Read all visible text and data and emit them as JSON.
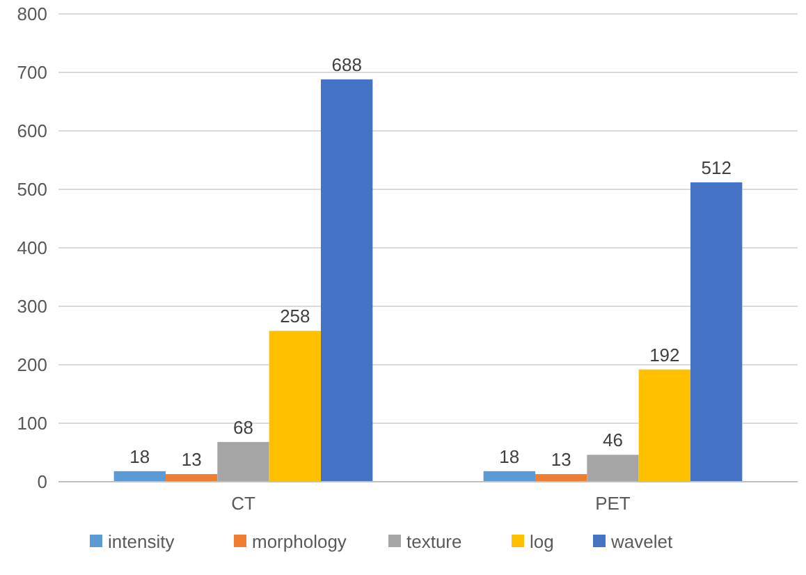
{
  "chart_data": {
    "type": "bar",
    "categories": [
      "CT",
      "PET"
    ],
    "series": [
      {
        "name": "intensity",
        "color": "#5b9bd5",
        "values": [
          18,
          18
        ]
      },
      {
        "name": "morphology",
        "color": "#ed7d31",
        "values": [
          13,
          13
        ]
      },
      {
        "name": "texture",
        "color": "#a5a5a5",
        "values": [
          68,
          46
        ]
      },
      {
        "name": "log",
        "color": "#ffc000",
        "values": [
          258,
          192
        ]
      },
      {
        "name": "wavelet",
        "color": "#4472c4",
        "values": [
          688,
          512
        ]
      }
    ],
    "ylim": [
      0,
      800
    ],
    "yticks": [
      0,
      100,
      200,
      300,
      400,
      500,
      600,
      700,
      800
    ],
    "grid": "y",
    "legend": "bottom",
    "data_labels": true
  }
}
